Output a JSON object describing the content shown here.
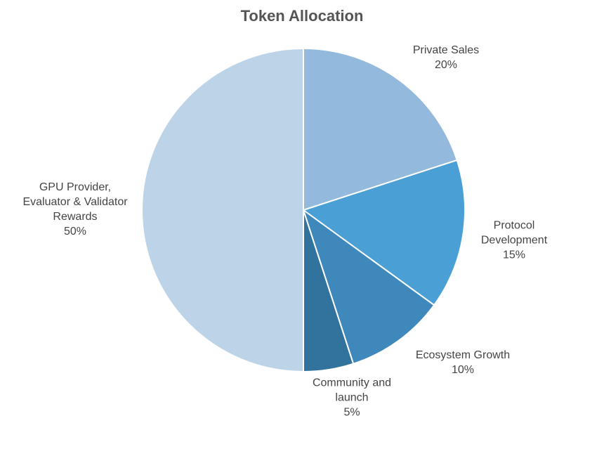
{
  "chart_data": {
    "type": "pie",
    "title": "Token Allocation",
    "categories": [
      "Private Sales",
      "Protocol Development",
      "Ecosystem Growth",
      "Community and launch",
      "GPU Provider, Evaluator & Validator Rewards"
    ],
    "values": [
      20,
      15,
      10,
      5,
      50
    ],
    "value_labels": [
      "20%",
      "15%",
      "10%",
      "5%",
      "50%"
    ],
    "colors": [
      "#93b9dd",
      "#4a9fd5",
      "#3f88bb",
      "#32739e",
      "#bcd3e8"
    ]
  }
}
